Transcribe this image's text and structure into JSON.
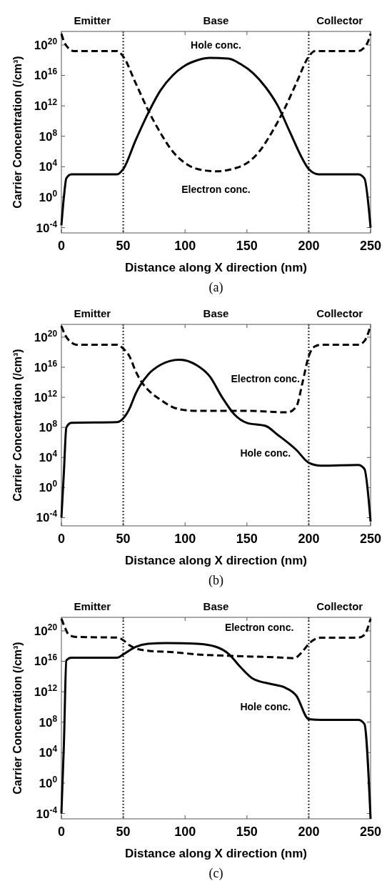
{
  "chart_data": [
    {
      "type": "line",
      "title": "(a)",
      "xlabel": "Distance along X direction (nm)",
      "ylabel": "Carrier Concentration (/cm³)",
      "log": "y",
      "xlim": [
        0,
        250
      ],
      "xticks": [
        0,
        50,
        100,
        150,
        200,
        250
      ],
      "ylim": [
        2e-05,
        6e+21
      ],
      "yticks": [
        {
          "value": 0.0001,
          "label": "10$^{-4}$"
        },
        {
          "value": 1,
          "label": "10$^{0}$"
        },
        {
          "value": 10000.0,
          "label": "10$^{4}$"
        },
        {
          "value": 100000000.0,
          "label": "10$^{8}$"
        },
        {
          "value": 1000000000000.0,
          "label": "10$^{12}$"
        },
        {
          "value": 1e+16,
          "label": "10$^{16}$"
        },
        {
          "value": 1e+20,
          "label": "10$^{20}$"
        }
      ],
      "grid": false,
      "series": [
        {
          "name": "Electron conc.",
          "color": "#000000",
          "line_style": "dashed",
          "x": [
            0,
            2,
            5,
            10,
            45,
            50,
            60,
            70,
            80,
            90,
            100,
            110,
            125,
            140,
            150,
            160,
            170,
            180,
            190,
            200,
            205,
            240,
            245,
            248,
            250
          ],
          "values": [
            3e+21,
            3e+20,
            5e+19,
            1.6e+19,
            1.6e+19,
            3e+18,
            1000000000000000.0,
            300000000000.0,
            300000000.0,
            1000000.0,
            30000.0,
            5000.0,
            2500.0,
            6000.0,
            30000.0,
            1000000.0,
            300000000.0,
            300000000000.0,
            1000000000000000.0,
            3e+18,
            1.6e+19,
            1.6e+19,
            5e+19,
            3e+20,
            3e+21
          ]
        },
        {
          "name": "Hole conc.",
          "color": "#000000",
          "line_style": "solid",
          "x": [
            0,
            2,
            4,
            8,
            45,
            50,
            60,
            70,
            80,
            90,
            100,
            110,
            120,
            135,
            145,
            155,
            165,
            175,
            185,
            195,
            200,
            208,
            240,
            245,
            250
          ],
          "values": [
            0.0002,
            1,
            300,
            1000,
            1000,
            5000,
            30000000.0,
            100000000000.0,
            100000000000000.0,
            1e+16,
            2e+17,
            1e+18,
            2e+18,
            1.6e+18,
            3e+17,
            2e+16,
            300000000000000.0,
            1000000000000.0,
            300000000.0,
            100000.0,
            5000,
            1000,
            1000,
            300,
            0.0001
          ]
        }
      ],
      "ref_lines": [
        {
          "axis": "x",
          "value": 50,
          "line_style": "dotted"
        },
        {
          "axis": "x",
          "value": 200,
          "line_style": "dotted"
        }
      ],
      "annotations": [
        "Emitter",
        "Base",
        "Collector"
      ]
    },
    {
      "type": "line",
      "title": "(b)",
      "xlabel": "Distance along X direction (nm)",
      "ylabel": "Carrier Concentration (/cm³)",
      "log": "y",
      "xlim": [
        0,
        250
      ],
      "xticks": [
        0,
        50,
        100,
        150,
        200,
        250
      ],
      "ylim": [
        8e-06,
        5e+21
      ],
      "yticks": [
        {
          "value": 0.0001,
          "label": "10$^{-4}$"
        },
        {
          "value": 1,
          "label": "10$^{0}$"
        },
        {
          "value": 10000.0,
          "label": "10$^{4}$"
        },
        {
          "value": 100000000.0,
          "label": "10$^{8}$"
        },
        {
          "value": 1000000000000.0,
          "label": "10$^{12}$"
        },
        {
          "value": 1e+16,
          "label": "10$^{16}$"
        },
        {
          "value": 1e+20,
          "label": "10$^{20}$"
        }
      ],
      "grid": false,
      "series": [
        {
          "name": "Electron conc.",
          "color": "#000000",
          "line_style": "dashed",
          "x": [
            0,
            3,
            8,
            12,
            45,
            50,
            55,
            60,
            65,
            70,
            80,
            90,
            100,
            110,
            150,
            183,
            190,
            195,
            200,
            205,
            210,
            240,
            245,
            250
          ],
          "values": [
            3e+21,
            2e+20,
            2e+19,
            1e+19,
            1e+19,
            3e+18,
            3e+17,
            3000000000000000.0,
            100000000000000.0,
            10000000000000.0,
            500000000000.0,
            50000000000.0,
            20000000000.0,
            16000000000.0,
            16000000000.0,
            10000000000.0,
            60000000000.0,
            100000000000000.0,
            3e+17,
            6e+18,
            1e+19,
            1e+19,
            3e+19,
            3e+21
          ]
        },
        {
          "name": "Hole conc.",
          "color": "#000000",
          "line_style": "solid",
          "x": [
            0,
            2,
            4,
            8,
            45,
            50,
            55,
            60,
            70,
            80,
            95,
            110,
            120,
            130,
            140,
            150,
            165,
            175,
            190,
            200,
            210,
            240,
            245,
            250
          ],
          "values": [
            0.0001,
            100,
            100000000.0,
            400000000.0,
            500000000.0,
            1600000000.0,
            30000000000.0,
            3000000000000.0,
            1000000000000000.0,
            2e+16,
            1e+17,
            1.6e+16,
            600000000000000.0,
            1000000000000.0,
            5000000000.0,
            400000000.0,
            160000000.0,
            10000000.0,
            100000.0,
            2000,
            800,
            1000,
            300,
            3e-05
          ]
        }
      ],
      "ref_lines": [
        {
          "axis": "x",
          "value": 50,
          "line_style": "dotted"
        },
        {
          "axis": "x",
          "value": 200,
          "line_style": "dotted"
        }
      ],
      "annotations": [
        "Emitter",
        "Base",
        "Collector"
      ]
    },
    {
      "type": "line",
      "title": "(c)",
      "xlabel": "Distance along X direction (nm)",
      "ylabel": "Carrier Concentration (/cm³)",
      "log": "y",
      "xlim": [
        0,
        250
      ],
      "xticks": [
        0,
        50,
        100,
        150,
        200,
        250
      ],
      "ylim": [
        2e-05,
        6e+21
      ],
      "yticks": [
        {
          "value": 0.0001,
          "label": "10$^{-4}$"
        },
        {
          "value": 1,
          "label": "10$^{0}$"
        },
        {
          "value": 10000.0,
          "label": "10$^{4}$"
        },
        {
          "value": 100000000.0,
          "label": "10$^{8}$"
        },
        {
          "value": 1000000000000.0,
          "label": "10$^{12}$"
        },
        {
          "value": 1e+16,
          "label": "10$^{16}$"
        },
        {
          "value": 1e+20,
          "label": "10$^{20}$"
        }
      ],
      "grid": false,
      "series": [
        {
          "name": "Electron conc.",
          "color": "#000000",
          "line_style": "dashed",
          "x": [
            0,
            3,
            6,
            12,
            45,
            50,
            55,
            60,
            70,
            90,
            110,
            140,
            180,
            188,
            195,
            200,
            210,
            240,
            245,
            250
          ],
          "values": [
            4e+21,
            2.5e+20,
            3e+19,
            1.6e+19,
            1.3e+19,
            6e+18,
            1.3e+18,
            5e+17,
            2.5e+17,
            1.6e+17,
            8e+16,
            5e+16,
            3e+16,
            2.5e+16,
            2e+17,
            2e+18,
            1.3e+19,
            1.3e+19,
            3e+19,
            4e+21
          ]
        },
        {
          "name": "Hole conc.",
          "color": "#000000",
          "line_style": "solid",
          "x": [
            0,
            2,
            4,
            8,
            45,
            50,
            60,
            70,
            85,
            110,
            125,
            135,
            145,
            155,
            170,
            180,
            190,
            200,
            210,
            240,
            245,
            250
          ],
          "values": [
            0.0001,
            100000.0,
            1.3e+16,
            3e+16,
            3e+16,
            8e+16,
            8e+17,
            2e+18,
            2.5e+18,
            2e+18,
            8e+17,
            1e+17,
            1600000000000000.0,
            50000000000000.0,
            10000000000000.0,
            4000000000000.0,
            300000000000.0,
            250000000.0,
            200000000.0,
            200000000.0,
            60000000.0,
            2e-05
          ]
        }
      ],
      "ref_lines": [
        {
          "axis": "x",
          "value": 50,
          "line_style": "dotted"
        },
        {
          "axis": "x",
          "value": 200,
          "line_style": "dotted"
        }
      ],
      "annotations": [
        "Emitter",
        "Base",
        "Collector"
      ]
    }
  ]
}
